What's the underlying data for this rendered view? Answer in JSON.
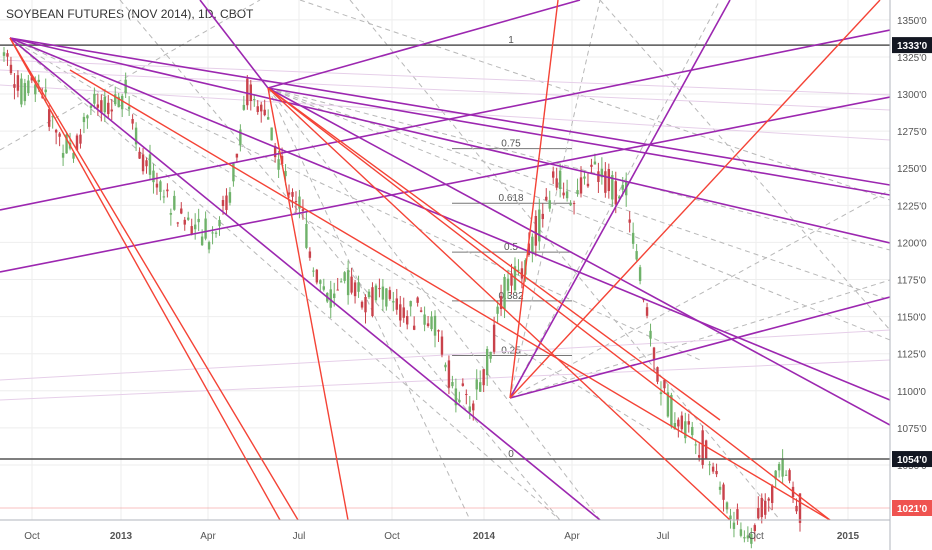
{
  "header": {
    "title": "SOYBEAN FUTURES (NOV 2014), 1D, CBOT"
  },
  "colors": {
    "up": "#6fb26a",
    "down": "#c9424b",
    "purple": "#9c27b0",
    "red": "#f44336",
    "grid": "#eeeeee",
    "axis_text": "#555555",
    "hline": "#555555",
    "last_price": "#ef5350",
    "tag_dark": "#131722"
  },
  "chart_data": {
    "type": "candlestick",
    "title": "SOYBEAN FUTURES (NOV 2014), 1D, CBOT",
    "y_axis": {
      "position": "right",
      "range": [
        1021.0,
        1358.0
      ],
      "ticks": [
        {
          "value": 1350.0,
          "label": "1350'0"
        },
        {
          "value": 1325.0,
          "label": "1325'0"
        },
        {
          "value": 1300.0,
          "label": "1300'0"
        },
        {
          "value": 1275.0,
          "label": "1275'0"
        },
        {
          "value": 1250.0,
          "label": "1250'0"
        },
        {
          "value": 1225.0,
          "label": "1225'0"
        },
        {
          "value": 1200.0,
          "label": "1200'0"
        },
        {
          "value": 1175.0,
          "label": "1175'0"
        },
        {
          "value": 1150.0,
          "label": "1150'0"
        },
        {
          "value": 1125.0,
          "label": "1125'0"
        },
        {
          "value": 1100.0,
          "label": "1100'0"
        },
        {
          "value": 1075.0,
          "label": "1075'0"
        },
        {
          "value": 1050.0,
          "label": "1050'0"
        }
      ]
    },
    "x_axis": {
      "ticks": [
        {
          "label": "Oct",
          "bold": false
        },
        {
          "label": "2013",
          "bold": true
        },
        {
          "label": "Apr",
          "bold": false
        },
        {
          "label": "Jul",
          "bold": false
        },
        {
          "label": "Oct",
          "bold": false
        },
        {
          "label": "2014",
          "bold": true
        },
        {
          "label": "Apr",
          "bold": false
        },
        {
          "label": "Jul",
          "bold": false
        },
        {
          "label": "Oct",
          "bold": false
        },
        {
          "label": "2015",
          "bold": true
        }
      ]
    },
    "horizontal_lines": [
      {
        "value": 1333.0,
        "label": "1333'0"
      },
      {
        "value": 1054.0,
        "label": "1054'0"
      }
    ],
    "last_price": {
      "value": 1021.0,
      "label": "1021'0"
    },
    "fibonacci": {
      "high": 1333.0,
      "low": 1054.0,
      "levels": [
        {
          "ratio": 1,
          "label": "1"
        },
        {
          "ratio": 0.75,
          "label": "0.75"
        },
        {
          "ratio": 0.618,
          "label": "0.618"
        },
        {
          "ratio": 0.5,
          "label": "0.5"
        },
        {
          "ratio": 0.382,
          "label": "0.382"
        },
        {
          "ratio": 0.25,
          "label": "0.25"
        },
        {
          "ratio": 0,
          "label": "0"
        }
      ]
    },
    "price_path": [
      1333,
      1300,
      1310,
      1275,
      1260,
      1295,
      1285,
      1305,
      1255,
      1240,
      1220,
      1210,
      1205,
      1230,
      1300,
      1290,
      1250,
      1230,
      1180,
      1160,
      1175,
      1160,
      1165,
      1150,
      1155,
      1140,
      1100,
      1090,
      1120,
      1170,
      1185,
      1215,
      1245,
      1225,
      1250,
      1240,
      1230,
      1160,
      1100,
      1080,
      1070,
      1050,
      1015,
      1000,
      1025,
      1050,
      1021
    ]
  }
}
